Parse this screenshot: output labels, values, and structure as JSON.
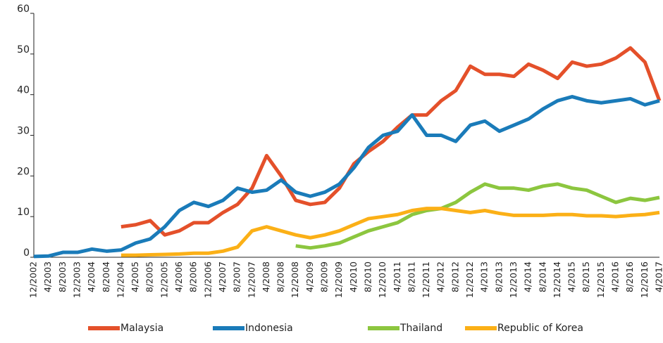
{
  "chart_data": {
    "type": "line",
    "categories": [
      "12/2002",
      "4/2003",
      "8/2003",
      "12/2003",
      "4/2004",
      "8/2004",
      "12/2004",
      "4/2005",
      "8/2005",
      "12/2005",
      "4/2006",
      "8/2006",
      "12/2006",
      "4/2007",
      "8/2007",
      "12/2007",
      "4/2008",
      "8/2008",
      "12/2008",
      "4/2009",
      "8/2009",
      "12/2009",
      "4/2010",
      "8/2010",
      "12/2010",
      "4/2011",
      "8/2011",
      "12/2011",
      "4/2012",
      "8/2012",
      "12/2012",
      "4/2013",
      "8/2013",
      "12/2013",
      "4/2014",
      "8/2014",
      "12/2014",
      "4/2015",
      "8/2015",
      "12/2015",
      "4/2016",
      "8/2016",
      "12/2016",
      "4/2017"
    ],
    "series": [
      {
        "name": "Malaysia",
        "color": "#e4502a",
        "values": [
          null,
          null,
          null,
          null,
          null,
          null,
          7.5,
          8,
          9,
          5.5,
          6.5,
          8.5,
          8.5,
          11,
          13,
          17,
          25,
          20,
          14,
          13,
          13.5,
          17,
          23,
          26,
          28.5,
          32,
          35,
          35,
          38.5,
          41,
          47,
          45,
          45,
          44.5,
          47.5,
          46,
          44,
          48,
          47,
          47.5,
          49,
          51.5,
          48,
          38.5
        ]
      },
      {
        "name": "Indonesia",
        "color": "#1a7bb9",
        "values": [
          0.2,
          0.3,
          1.2,
          1.2,
          2,
          1.5,
          1.8,
          3.5,
          4.5,
          7.5,
          11.5,
          13.5,
          12.5,
          14,
          17,
          16,
          16.5,
          19,
          16,
          15,
          16,
          18,
          22,
          27,
          30,
          31,
          35,
          30,
          30,
          28.5,
          32.5,
          33.5,
          31,
          32.5,
          34,
          36.5,
          38.5,
          39.5,
          38.5,
          38,
          38.5,
          39,
          37.5,
          38.5
        ]
      },
      {
        "name": "Thailand",
        "color": "#8cc63f",
        "values": [
          null,
          null,
          null,
          null,
          null,
          null,
          null,
          null,
          null,
          null,
          null,
          null,
          null,
          null,
          null,
          null,
          null,
          null,
          2.8,
          2.3,
          2.8,
          3.5,
          5,
          6.5,
          7.5,
          8.5,
          10.5,
          11.5,
          12,
          13.5,
          16,
          18,
          17,
          17,
          16.5,
          17.5,
          18,
          17,
          16.5,
          15,
          13.5,
          14.5,
          14,
          14.7
        ]
      },
      {
        "name": "Republic of Korea",
        "color": "#fbb017",
        "values": [
          null,
          null,
          null,
          null,
          null,
          null,
          0.5,
          0.5,
          0.6,
          0.7,
          0.8,
          1,
          1,
          1.5,
          2.5,
          6.5,
          7.5,
          6.5,
          5.5,
          4.8,
          5.5,
          6.5,
          8,
          9.5,
          10,
          10.5,
          11.5,
          12,
          12,
          11.5,
          11,
          11.5,
          10.8,
          10.3,
          10.3,
          10.3,
          10.5,
          10.5,
          10.2,
          10.2,
          10,
          10.3,
          10.5,
          11
        ]
      }
    ],
    "ylim": [
      0,
      60
    ],
    "yticks": [
      0,
      10,
      20,
      30,
      40,
      50,
      60
    ],
    "grid": false
  }
}
